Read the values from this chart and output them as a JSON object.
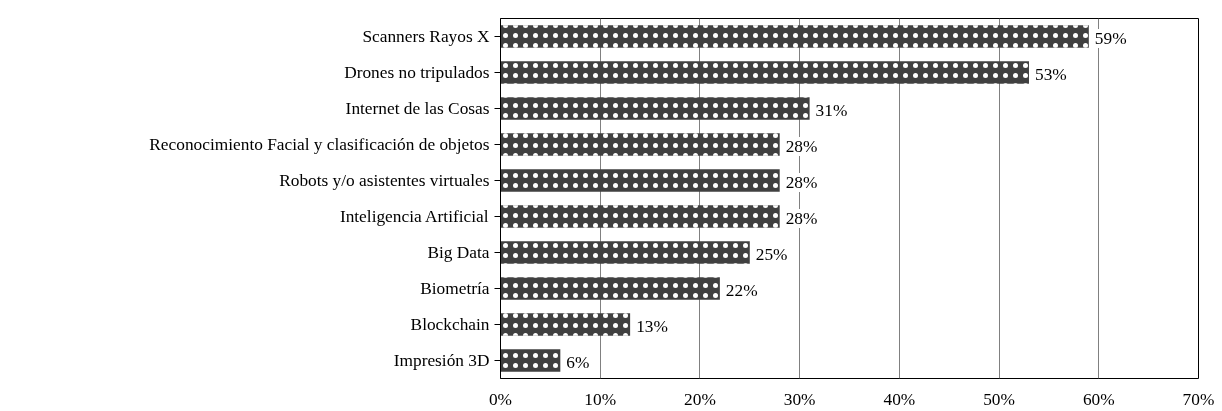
{
  "chart_data": {
    "type": "bar",
    "orientation": "horizontal",
    "categories": [
      "Scanners Rayos X",
      "Drones no tripulados",
      "Internet de las Cosas",
      "Reconocimiento Facial y clasificación de objetos",
      "Robots y/o asistentes virtuales",
      "Inteligencia Artificial",
      "Big Data",
      "Biometría",
      "Blockchain",
      "Impresión 3D"
    ],
    "values": [
      59,
      53,
      31,
      28,
      28,
      28,
      25,
      22,
      13,
      6
    ],
    "value_labels": [
      "59%",
      "53%",
      "31%",
      "28%",
      "28%",
      "28%",
      "25%",
      "22%",
      "13%",
      "6%"
    ],
    "color": "#404040",
    "xlim": [
      0,
      70
    ],
    "xticks": [
      {
        "value": 0,
        "label": "0%"
      },
      {
        "value": 10,
        "label": "10%"
      },
      {
        "value": 20,
        "label": "20%"
      },
      {
        "value": 30,
        "label": "30%"
      },
      {
        "value": 40,
        "label": "40%"
      },
      {
        "value": 50,
        "label": "50%"
      },
      {
        "value": 60,
        "label": "60%"
      },
      {
        "value": 70,
        "label": "70%"
      }
    ],
    "grid": "x"
  }
}
